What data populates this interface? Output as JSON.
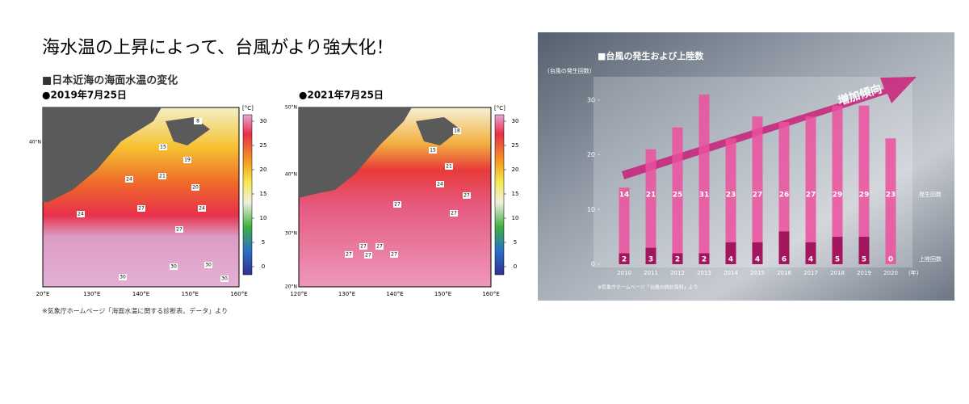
{
  "header": {
    "title": "海水温の上昇によって、台風がより強大化！",
    "subtitle": "■日本近海の海面水温の変化",
    "source": "※気象庁ホームページ「海面水温に関する診断表、データ」より"
  },
  "maps": [
    {
      "date": "●2019年7月25日",
      "xticks": [
        "20°E",
        "130°E",
        "140°E",
        "150°E",
        "160°E"
      ],
      "yticks": [
        "40°N"
      ],
      "contour_labels": [
        "8",
        "15",
        "19",
        "24",
        "21",
        "20",
        "24",
        "24",
        "27",
        "27",
        "30",
        "30",
        "30",
        "30"
      ]
    },
    {
      "date": "●2021年7月25日",
      "xticks": [
        "120°E",
        "130°E",
        "140°E",
        "150°E",
        "160°E"
      ],
      "yticks": [
        "50°N",
        "40°N",
        "30°N",
        "20°N"
      ],
      "contour_labels": [
        "18",
        "15",
        "21",
        "24",
        "27",
        "27",
        "27",
        "27",
        "27",
        "27",
        "27",
        "27"
      ]
    }
  ],
  "colorbar": {
    "unit": "[°C]",
    "clim": [
      -2,
      32
    ],
    "ticks": [
      30,
      25,
      20,
      15,
      10,
      5,
      0
    ]
  },
  "chart_data": {
    "type": "bar",
    "title": "■台風の発生および上陸数",
    "ylabel": "(台風の発生回数)",
    "xlabel": "(年)",
    "annotation": "増加傾向",
    "source": "※気象庁ホームページ「台風の統計資料」より",
    "categories": [
      "2010",
      "2011",
      "2012",
      "2013",
      "2014",
      "2015",
      "2016",
      "2017",
      "2018",
      "2019",
      "2020"
    ],
    "series": [
      {
        "name": "発生回数",
        "color": "#ec4f9e",
        "values": [
          14,
          21,
          25,
          31,
          23,
          27,
          26,
          27,
          29,
          29,
          23
        ]
      },
      {
        "name": "上陸回数",
        "color": "#a3155d",
        "values": [
          2,
          3,
          2,
          2,
          4,
          4,
          6,
          4,
          5,
          5,
          0
        ]
      }
    ],
    "ylim": [
      0,
      35
    ],
    "yticks": [
      0,
      10,
      20,
      30
    ]
  }
}
